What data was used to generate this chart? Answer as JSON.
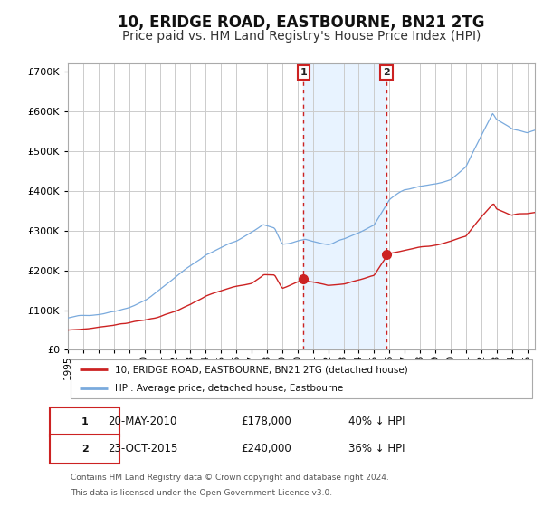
{
  "title": "10, ERIDGE ROAD, EASTBOURNE, BN21 2TG",
  "subtitle": "Price paid vs. HM Land Registry's House Price Index (HPI)",
  "title_fontsize": 12,
  "subtitle_fontsize": 10,
  "bg_color": "#ffffff",
  "plot_bg_color": "#ffffff",
  "grid_color": "#cccccc",
  "hpi_color": "#7aaadd",
  "property_color": "#cc2222",
  "sale1_date": 2010.38,
  "sale1_price": 178000,
  "sale2_date": 2015.81,
  "sale2_price": 240000,
  "shade_color": "#ddeeff",
  "dashed_color": "#cc2222",
  "legend_property": "10, ERIDGE ROAD, EASTBOURNE, BN21 2TG (detached house)",
  "legend_hpi": "HPI: Average price, detached house, Eastbourne",
  "annotation1_date": "20-MAY-2010",
  "annotation1_price": "£178,000",
  "annotation1_pct": "40% ↓ HPI",
  "annotation2_date": "23-OCT-2015",
  "annotation2_price": "£240,000",
  "annotation2_pct": "36% ↓ HPI",
  "footer1": "Contains HM Land Registry data © Crown copyright and database right 2024.",
  "footer2": "This data is licensed under the Open Government Licence v3.0.",
  "ylim_max": 720000,
  "xlim_min": 1995.0,
  "xlim_max": 2025.5
}
